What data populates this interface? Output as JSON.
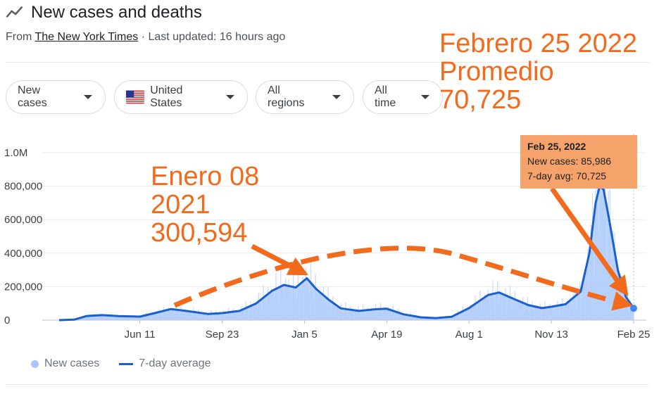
{
  "header": {
    "title": "New cases and deaths",
    "source_prefix": "From ",
    "source_link": "The New York Times",
    "updated": " · Last updated: 16 hours ago"
  },
  "filters": [
    {
      "label": "New cases"
    },
    {
      "label": "United States"
    },
    {
      "label": "All regions"
    },
    {
      "label": "All time"
    }
  ],
  "annotations": {
    "feb_note": "Febrero 25 2022\nPromedio\n70,725",
    "jan_note": "Enero 08\n2021\n300,594"
  },
  "tooltip": {
    "title": "Feb 25, 2022",
    "new_cases": "New cases: 85,986",
    "avg": "7-day avg: 70,725"
  },
  "legend": {
    "new_cases": "New cases",
    "avg": "7-day average"
  },
  "colors": {
    "bars": "#a8c7fa",
    "avg_line": "#1a5fd0",
    "annotation": "#f26a1b",
    "tooltip_bg": "#f6a36b"
  },
  "chart_data": {
    "type": "area",
    "xlabel": "",
    "ylabel": "",
    "ylim": [
      0,
      1000000
    ],
    "y_ticks": [
      0,
      200000,
      400000,
      600000,
      800000,
      1000000
    ],
    "y_tick_labels": [
      "0",
      "200,000",
      "400,000",
      "600,000",
      "800,000",
      "1.0M"
    ],
    "x_ticks": [
      "2020-06-11",
      "2020-09-23",
      "2021-01-05",
      "2021-04-19",
      "2021-08-01",
      "2021-11-13",
      "2022-02-25"
    ],
    "x_tick_labels": [
      "Jun 11",
      "Sep 23",
      "Jan 5",
      "Apr 19",
      "Aug 1",
      "Nov 13",
      "Feb 25"
    ],
    "xlim": [
      "2020-03-01",
      "2022-02-25"
    ],
    "series": [
      {
        "name": "7-day average",
        "points": [
          [
            "2020-03-01",
            0
          ],
          [
            "2020-03-20",
            3000
          ],
          [
            "2020-04-05",
            25000
          ],
          [
            "2020-04-25",
            30000
          ],
          [
            "2020-05-15",
            24000
          ],
          [
            "2020-06-11",
            21000
          ],
          [
            "2020-06-28",
            40000
          ],
          [
            "2020-07-20",
            66000
          ],
          [
            "2020-08-10",
            54000
          ],
          [
            "2020-09-05",
            37000
          ],
          [
            "2020-09-23",
            42000
          ],
          [
            "2020-10-15",
            55000
          ],
          [
            "2020-11-05",
            100000
          ],
          [
            "2020-11-25",
            175000
          ],
          [
            "2020-12-10",
            210000
          ],
          [
            "2020-12-25",
            195000
          ],
          [
            "2021-01-08",
            250000
          ],
          [
            "2021-01-20",
            185000
          ],
          [
            "2021-02-05",
            120000
          ],
          [
            "2021-02-20",
            70000
          ],
          [
            "2021-03-15",
            55000
          ],
          [
            "2021-04-05",
            65000
          ],
          [
            "2021-04-19",
            68000
          ],
          [
            "2021-05-10",
            35000
          ],
          [
            "2021-06-01",
            17000
          ],
          [
            "2021-06-20",
            12000
          ],
          [
            "2021-07-10",
            20000
          ],
          [
            "2021-08-01",
            72000
          ],
          [
            "2021-08-25",
            150000
          ],
          [
            "2021-09-08",
            165000
          ],
          [
            "2021-09-25",
            130000
          ],
          [
            "2021-10-15",
            90000
          ],
          [
            "2021-11-01",
            72000
          ],
          [
            "2021-11-13",
            80000
          ],
          [
            "2021-12-01",
            95000
          ],
          [
            "2021-12-20",
            170000
          ],
          [
            "2021-12-31",
            400000
          ],
          [
            "2022-01-08",
            700000
          ],
          [
            "2022-01-13",
            800000
          ],
          [
            "2022-01-18",
            780000
          ],
          [
            "2022-01-25",
            600000
          ],
          [
            "2022-02-05",
            300000
          ],
          [
            "2022-02-15",
            140000
          ],
          [
            "2022-02-25",
            70725
          ]
        ]
      }
    ],
    "highlight": {
      "x": "2022-02-25",
      "new_cases": 85986,
      "avg": 70725
    },
    "annotations": [
      {
        "x": "2021-01-08",
        "y": 300594
      },
      {
        "x": "2022-02-25",
        "y": 70725
      }
    ]
  }
}
